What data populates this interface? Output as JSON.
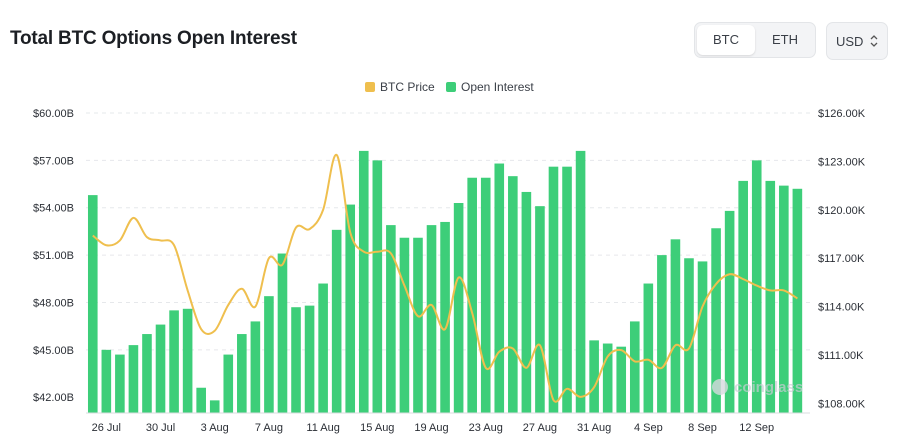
{
  "header": {
    "title": "Total BTC Options Open Interest"
  },
  "asset_toggle": {
    "options": [
      "BTC",
      "ETH"
    ],
    "selected": "BTC"
  },
  "currency_select": {
    "value": "USD"
  },
  "watermark": "coinglass",
  "colors": {
    "oi_bar": "#3dce79",
    "btc_price_line": "#efbf4e",
    "grid": "#e6e8eb"
  },
  "chart_data": {
    "type": "bar",
    "title": "Total BTC Options Open Interest",
    "legend": {
      "placement": "top-center",
      "entries": [
        "BTC Price",
        "Open Interest"
      ]
    },
    "x_tick_labels": [
      "26 Jul",
      "30 Jul",
      "3 Aug",
      "7 Aug",
      "11 Aug",
      "15 Aug",
      "19 Aug",
      "23 Aug",
      "27 Aug",
      "31 Aug",
      "4 Sep",
      "8 Sep",
      "12 Sep"
    ],
    "categories": [
      "25 Jul",
      "26 Jul",
      "27 Jul",
      "28 Jul",
      "29 Jul",
      "30 Jul",
      "31 Jul",
      "1 Aug",
      "2 Aug",
      "3 Aug",
      "4 Aug",
      "5 Aug",
      "6 Aug",
      "7 Aug",
      "8 Aug",
      "9 Aug",
      "10 Aug",
      "11 Aug",
      "12 Aug",
      "13 Aug",
      "14 Aug",
      "15 Aug",
      "16 Aug",
      "17 Aug",
      "18 Aug",
      "19 Aug",
      "20 Aug",
      "21 Aug",
      "22 Aug",
      "23 Aug",
      "24 Aug",
      "25 Aug",
      "26 Aug",
      "27 Aug",
      "28 Aug",
      "29 Aug",
      "30 Aug",
      "31 Aug",
      "1 Sep",
      "2 Sep",
      "3 Sep",
      "4 Sep",
      "5 Sep",
      "6 Sep",
      "7 Sep",
      "8 Sep",
      "9 Sep",
      "10 Sep",
      "11 Sep",
      "12 Sep",
      "13 Sep",
      "14 Sep",
      "15 Sep"
    ],
    "series": [
      {
        "name": "Open Interest",
        "type": "bar",
        "axis": "left",
        "values": [
          54.8,
          45.0,
          44.7,
          45.3,
          46.0,
          46.6,
          47.5,
          47.6,
          42.6,
          41.8,
          44.7,
          46.0,
          46.8,
          48.4,
          51.1,
          47.7,
          47.8,
          49.2,
          52.6,
          54.2,
          57.6,
          57.0,
          52.9,
          52.1,
          52.1,
          52.9,
          53.1,
          54.3,
          55.9,
          55.9,
          56.8,
          56.0,
          55.0,
          54.1,
          56.6,
          56.6,
          57.6,
          45.6,
          45.4,
          45.2,
          46.8,
          49.2,
          51.0,
          52.0,
          50.8,
          50.6,
          52.7,
          53.8,
          55.7,
          57.0,
          55.7,
          55.4,
          55.2
        ]
      },
      {
        "name": "BTC Price",
        "type": "line",
        "axis": "right",
        "values": [
          118.4,
          117.8,
          118.1,
          119.5,
          118.3,
          118.1,
          117.8,
          115.0,
          112.6,
          112.5,
          114.1,
          115.1,
          114.0,
          117.0,
          116.6,
          118.9,
          118.8,
          120.0,
          123.4,
          118.6,
          117.4,
          117.4,
          117.3,
          115.3,
          113.4,
          114.1,
          112.6,
          115.8,
          113.6,
          110.2,
          111.2,
          111.4,
          110.2,
          111.6,
          108.2,
          108.9,
          108.4,
          109.0,
          110.9,
          111.3,
          110.6,
          110.7,
          110.2,
          111.6,
          111.4,
          114.0,
          115.4,
          116.0,
          115.7,
          115.3,
          115.0,
          115.0,
          114.5
        ]
      }
    ],
    "y_left": {
      "ticks": [
        "$42.00B",
        "$45.00B",
        "$48.00B",
        "$51.00B",
        "$54.00B",
        "$57.00B",
        "$60.00B"
      ],
      "ylim": [
        41,
        60
      ]
    },
    "y_right": {
      "ticks": [
        "$108.00K",
        "$111.00K",
        "$114.00K",
        "$117.00K",
        "$120.00K",
        "$123.00K",
        "$126.00K"
      ],
      "ylim": [
        107.4,
        126
      ]
    },
    "grid": true
  }
}
